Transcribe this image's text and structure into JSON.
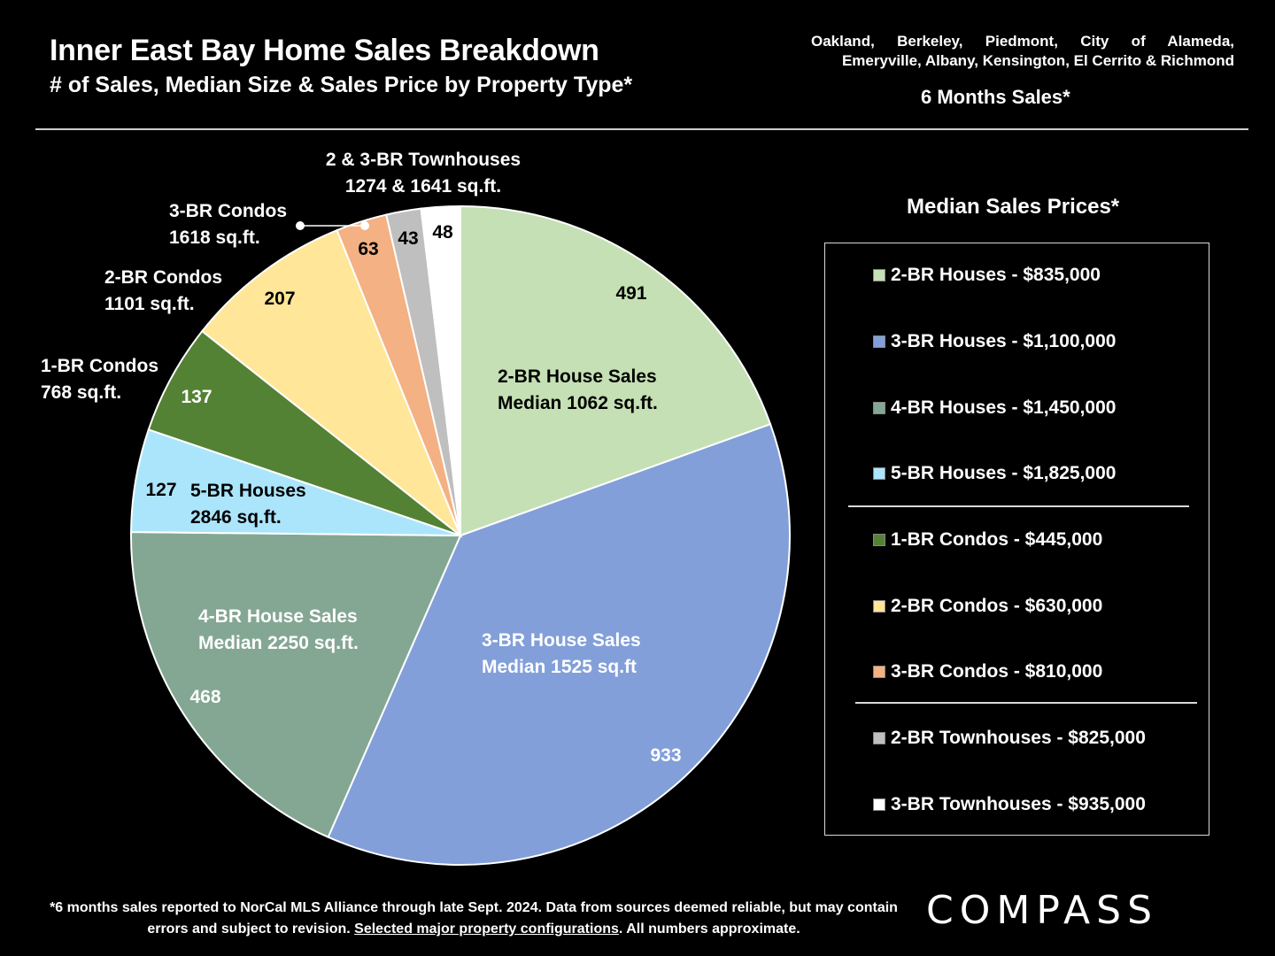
{
  "header": {
    "title": "Inner East Bay Home Sales Breakdown",
    "subtitle": "# of Sales, Median Size & Sales Price by Property Type*",
    "cities_line1": "Oakland, Berkeley, Piedmont, City of Alameda,",
    "cities_line2": "Emeryville, Albany, Kensington, El Cerrito & Richmond",
    "period": "6 Months Sales*"
  },
  "chart_data": {
    "type": "pie",
    "title": "Inner East Bay Home Sales Breakdown",
    "start": "12 o'clock, clockwise",
    "slices": [
      {
        "name": "2-BR Houses",
        "value": 491,
        "color": "#C5E0B4",
        "label_lines": [
          "2-BR House Sales",
          "Median 1062 sq.ft."
        ]
      },
      {
        "name": "3-BR Houses",
        "value": 933,
        "color": "#829FD9",
        "label_lines": [
          "3-BR House Sales",
          "Median 1525 sq.ft"
        ]
      },
      {
        "name": "4-BR Houses",
        "value": 468,
        "color": "#84A793",
        "label_lines": [
          "4-BR House Sales",
          "Median 2250 sq.ft."
        ]
      },
      {
        "name": "5-BR Houses",
        "value": 127,
        "color": "#ABE5FB",
        "label_lines": [
          "5-BR Houses",
          "2846 sq.ft."
        ]
      },
      {
        "name": "1-BR Condos",
        "value": 137,
        "color": "#548235",
        "label_lines": [
          "1-BR Condos",
          "768 sq.ft."
        ]
      },
      {
        "name": "2-BR Condos",
        "value": 207,
        "color": "#FFE699",
        "label_lines": [
          "2-BR Condos",
          "1101 sq.ft."
        ]
      },
      {
        "name": "3-BR Condos",
        "value": 63,
        "color": "#F4B183",
        "label_lines": [
          "3-BR Condos",
          "1618 sq.ft."
        ]
      },
      {
        "name": "2-BR Townhouses",
        "value": 43,
        "color": "#BFBFBF",
        "label_lines": []
      },
      {
        "name": "3-BR Townhouses",
        "value": 48,
        "color": "#FFFFFF",
        "label_lines": []
      }
    ],
    "townhouse_label_lines": [
      "2 & 3-BR Townhouses",
      "1274 & 1641 sq.ft."
    ]
  },
  "legend": {
    "title": "Median Sales Prices*",
    "items": [
      {
        "label": "2-BR Houses - $835,000",
        "color": "#C5E0B4"
      },
      {
        "label": "3-BR Houses - $1,100,000",
        "color": "#829FD9"
      },
      {
        "label": "4-BR Houses - $1,450,000",
        "color": "#84A793"
      },
      {
        "label": "5-BR Houses - $1,825,000",
        "color": "#ABE5FB"
      },
      {
        "label": "1-BR Condos - $445,000",
        "color": "#548235"
      },
      {
        "label": "2-BR Condos - $630,000",
        "color": "#FFE699"
      },
      {
        "label": "3-BR Condos - $810,000",
        "color": "#F4B183"
      },
      {
        "label": "2-BR Townhouses - $825,000",
        "color": "#BFBFBF"
      },
      {
        "label": "3-BR Townhouses - $935,000",
        "color": "#FFFFFF"
      }
    ]
  },
  "footnote": {
    "part1": "*6 months sales reported to NorCal MLS Alliance through late Sept.  2024. Data from sources deemed reliable, but may contain errors and subject to revision. ",
    "link": "Selected major property configurations",
    "part2": ". All numbers approximate."
  },
  "logo": "COMPASS"
}
